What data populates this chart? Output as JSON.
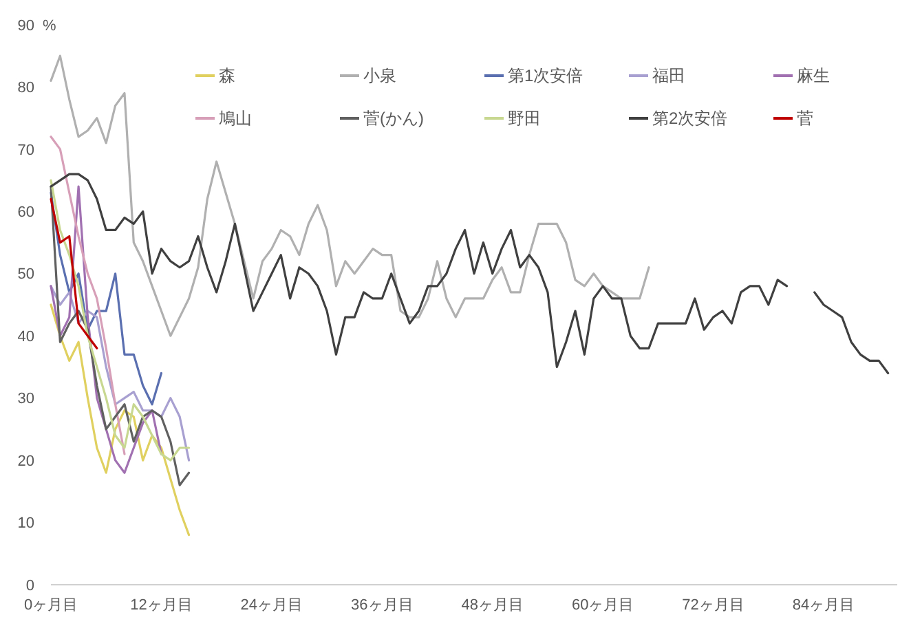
{
  "chart_data": {
    "type": "line",
    "ylabel": "%",
    "xlim": [
      0,
      92
    ],
    "xticks": [
      {
        "value": 0,
        "label": "0ヶ月目"
      },
      {
        "value": 12,
        "label": "12ヶ月目"
      },
      {
        "value": 24,
        "label": "24ヶ月目"
      },
      {
        "value": 36,
        "label": "36ヶ月目"
      },
      {
        "value": 48,
        "label": "48ヶ月目"
      },
      {
        "value": 60,
        "label": "60ヶ月目"
      },
      {
        "value": 72,
        "label": "72ヶ月目"
      },
      {
        "value": 84,
        "label": "84ヶ月目"
      }
    ],
    "ylim": [
      0,
      90
    ],
    "yticks": [
      0,
      10,
      20,
      30,
      40,
      50,
      60,
      70,
      80,
      90
    ],
    "grid": false,
    "legend": "top",
    "marker": "none",
    "line_style": "solid",
    "series": [
      {
        "name": "森",
        "color": "#e0d060",
        "x": [
          0,
          1,
          2,
          3,
          4,
          5,
          6,
          7,
          8,
          9,
          10,
          11,
          12,
          13,
          14,
          15
        ],
        "values": [
          45,
          40,
          36,
          39,
          30,
          22,
          18,
          25,
          28,
          27,
          20,
          24,
          22,
          17,
          12,
          8
        ]
      },
      {
        "name": "小泉",
        "color": "#b0b0b0",
        "x": [
          0,
          1,
          2,
          3,
          4,
          5,
          6,
          7,
          8,
          9,
          10,
          11,
          12,
          13,
          14,
          15,
          16,
          17,
          18,
          19,
          20,
          21,
          22,
          23,
          24,
          25,
          26,
          27,
          28,
          29,
          30,
          31,
          32,
          33,
          34,
          35,
          36,
          37,
          38,
          39,
          40,
          41,
          42,
          43,
          44,
          45,
          46,
          47,
          48,
          49,
          50,
          51,
          52,
          53,
          54,
          55,
          56,
          57,
          58,
          59,
          60,
          61,
          62,
          63,
          64,
          65
        ],
        "values": [
          81,
          85,
          78,
          72,
          73,
          75,
          71,
          77,
          79,
          55,
          52,
          48,
          44,
          40,
          43,
          46,
          51,
          62,
          68,
          63,
          58,
          52,
          46,
          52,
          54,
          57,
          56,
          53,
          58,
          61,
          57,
          48,
          52,
          50,
          52,
          54,
          53,
          53,
          44,
          43,
          43,
          46,
          52,
          46,
          43,
          46,
          46,
          46,
          49,
          51,
          47,
          47,
          53,
          58,
          58,
          58,
          55,
          49,
          48,
          50,
          48,
          47,
          46,
          46,
          46,
          51
        ]
      },
      {
        "name": "第1次安倍",
        "color": "#5a6fb0",
        "x": [
          0,
          1,
          2,
          3,
          4,
          5,
          6,
          7,
          8,
          9,
          10,
          11,
          12
        ],
        "values": [
          63,
          53,
          47,
          50,
          41,
          44,
          44,
          50,
          37,
          37,
          32,
          29,
          34
        ]
      },
      {
        "name": "福田",
        "color": "#a8a0d0",
        "x": [
          0,
          1,
          2,
          3,
          4,
          5,
          6,
          7,
          8,
          9,
          10,
          11,
          12,
          13,
          14,
          15
        ],
        "values": [
          48,
          45,
          47,
          42,
          44,
          43,
          35,
          29,
          30,
          31,
          28,
          28,
          27,
          30,
          27,
          20
        ]
      },
      {
        "name": "麻生",
        "color": "#a070b0",
        "x": [
          0,
          1,
          2,
          3,
          4,
          5,
          6,
          7,
          8,
          9,
          10,
          11,
          12
        ],
        "values": [
          48,
          40,
          43,
          64,
          43,
          30,
          25,
          20,
          18,
          22,
          26,
          28,
          21
        ]
      },
      {
        "name": "鳩山",
        "color": "#d8a0b8",
        "x": [
          0,
          1,
          2,
          3,
          4,
          5,
          6,
          7,
          8
        ],
        "values": [
          72,
          70,
          63,
          56,
          50,
          46,
          38,
          29,
          21
        ]
      },
      {
        "name": "菅(かん)",
        "color": "#606060",
        "x": [
          0,
          1,
          2,
          3,
          4,
          5,
          6,
          7,
          8,
          9,
          10,
          11,
          12,
          13,
          14,
          15
        ],
        "values": [
          64,
          39,
          42,
          44,
          41,
          32,
          25,
          27,
          29,
          23,
          27,
          28,
          27,
          23,
          16,
          18
        ]
      },
      {
        "name": "野田",
        "color": "#c8d890",
        "x": [
          0,
          1,
          2,
          3,
          4,
          5,
          6,
          7,
          8,
          9,
          10,
          11,
          12,
          13,
          14,
          15
        ],
        "values": [
          65,
          57,
          53,
          48,
          40,
          35,
          30,
          24,
          22,
          29,
          27,
          24,
          21,
          20,
          22,
          22
        ]
      },
      {
        "name": "第2次安倍",
        "color": "#404040",
        "x": [
          0,
          1,
          2,
          3,
          4,
          5,
          6,
          7,
          8,
          9,
          10,
          11,
          12,
          13,
          14,
          15,
          16,
          17,
          18,
          19,
          20,
          21,
          22,
          23,
          24,
          25,
          26,
          27,
          28,
          29,
          30,
          31,
          32,
          33,
          34,
          35,
          36,
          37,
          38,
          39,
          40,
          41,
          42,
          43,
          44,
          45,
          46,
          47,
          48,
          49,
          50,
          51,
          52,
          53,
          54,
          55,
          56,
          57,
          58,
          59,
          60,
          61,
          62,
          63,
          64,
          65,
          66,
          67,
          68,
          69,
          70,
          71,
          72,
          73,
          74,
          75,
          76,
          77,
          78,
          79,
          80,
          81,
          82,
          83,
          84,
          85,
          86,
          87,
          88,
          89,
          90,
          91
        ],
        "values": [
          64,
          65,
          66,
          66,
          65,
          62,
          57,
          57,
          59,
          58,
          60,
          50,
          54,
          52,
          51,
          52,
          56,
          51,
          47,
          52,
          58,
          51,
          44,
          47,
          50,
          53,
          46,
          51,
          50,
          48,
          44,
          37,
          43,
          43,
          47,
          46,
          46,
          50,
          46,
          42,
          44,
          48,
          48,
          50,
          54,
          57,
          50,
          55,
          50,
          54,
          57,
          51,
          53,
          51,
          47,
          35,
          39,
          44,
          37,
          46,
          48,
          46,
          46,
          40,
          38,
          38,
          42,
          42,
          42,
          42,
          46,
          41,
          43,
          44,
          42,
          47,
          48,
          48,
          45,
          49,
          48,
          null,
          null,
          47,
          45,
          44,
          43,
          39,
          37,
          36,
          36,
          34
        ]
      },
      {
        "name": "菅",
        "color": "#c00000",
        "x": [
          0,
          1,
          2,
          3,
          4,
          5
        ],
        "values": [
          62,
          55,
          56,
          42,
          40,
          38
        ]
      }
    ]
  }
}
